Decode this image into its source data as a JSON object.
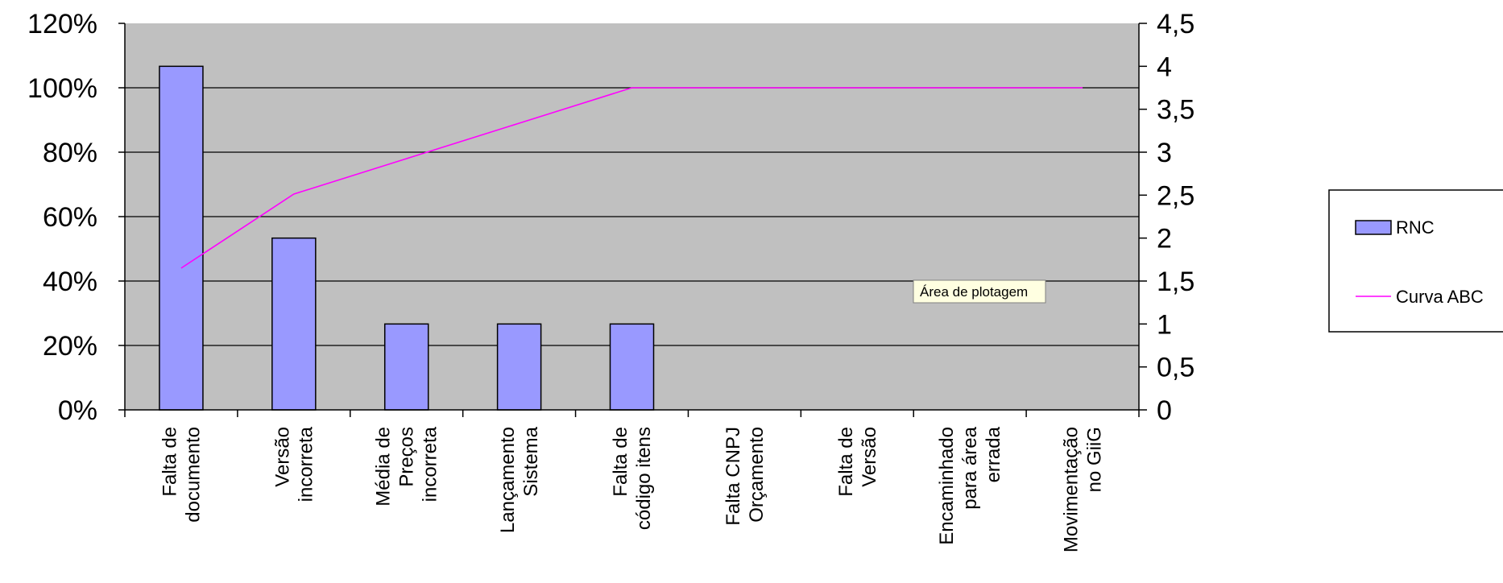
{
  "chart_data": {
    "type": "bar",
    "categories": [
      [
        "Falta de",
        "documento"
      ],
      [
        "Versão",
        "incorreta"
      ],
      [
        "Média de",
        "Preços",
        "incorreta"
      ],
      [
        "Lançamento",
        "Sistema"
      ],
      [
        "Falta de",
        "código itens"
      ],
      [
        "Falta CNPJ",
        "Orçamento"
      ],
      [
        "Falta de",
        "Versão"
      ],
      [
        "Encaminhado",
        "para área",
        "errada"
      ],
      [
        "Movimentação",
        "no GiiG"
      ]
    ],
    "series": [
      {
        "name": "RNC",
        "type": "bar",
        "axis": "right",
        "values": [
          4,
          2,
          1,
          1,
          1,
          0,
          0,
          0,
          0
        ]
      },
      {
        "name": "Curva ABC",
        "type": "line",
        "axis": "left",
        "values": [
          0.44,
          0.67,
          0.78,
          0.89,
          1.0,
          1.0,
          1.0,
          1.0,
          1.0
        ]
      }
    ],
    "y_left": {
      "min": 0,
      "max": 1.2,
      "step": 0.2,
      "tick_labels": [
        "0%",
        "20%",
        "40%",
        "60%",
        "80%",
        "100%",
        "120%"
      ]
    },
    "y_right": {
      "min": 0,
      "max": 4.5,
      "step": 0.5,
      "tick_labels": [
        "0",
        "0,5",
        "1",
        "1,5",
        "2",
        "2,5",
        "3",
        "3,5",
        "4",
        "4,5"
      ]
    },
    "grid": true,
    "legend_position": "right",
    "tooltip": "Área de plotagem",
    "colors": {
      "plot_background": "#c0c0c0",
      "bar_fill": "#9999ff",
      "bar_stroke": "#000000",
      "line": "#ff00ff",
      "grid": "#000000"
    }
  }
}
